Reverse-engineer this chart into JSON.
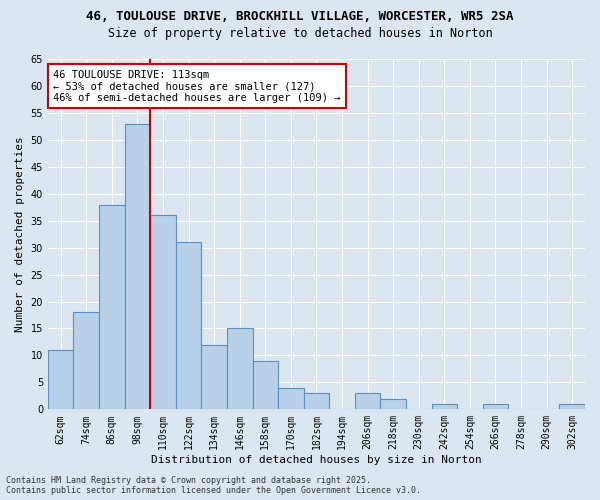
{
  "title1": "46, TOULOUSE DRIVE, BROCKHILL VILLAGE, WORCESTER, WR5 2SA",
  "title2": "Size of property relative to detached houses in Norton",
  "xlabel": "Distribution of detached houses by size in Norton",
  "ylabel": "Number of detached properties",
  "categories": [
    "62sqm",
    "74sqm",
    "86sqm",
    "98sqm",
    "110sqm",
    "122sqm",
    "134sqm",
    "146sqm",
    "158sqm",
    "170sqm",
    "182sqm",
    "194sqm",
    "206sqm",
    "218sqm",
    "230sqm",
    "242sqm",
    "254sqm",
    "266sqm",
    "278sqm",
    "290sqm",
    "302sqm"
  ],
  "values": [
    11,
    18,
    38,
    53,
    36,
    31,
    12,
    15,
    9,
    4,
    3,
    0,
    3,
    2,
    0,
    1,
    0,
    1,
    0,
    0,
    1
  ],
  "bar_color": "#b8d0e8",
  "bar_edge_color": "#5a8fc0",
  "bar_edge_width": 0.8,
  "ylim": [
    0,
    65
  ],
  "yticks": [
    0,
    5,
    10,
    15,
    20,
    25,
    30,
    35,
    40,
    45,
    50,
    55,
    60,
    65
  ],
  "vline_x": 3.5,
  "vline_color": "#cc0000",
  "annotation_text": "46 TOULOUSE DRIVE: 113sqm\n← 53% of detached houses are smaller (127)\n46% of semi-detached houses are larger (109) →",
  "annotation_box_color": "white",
  "annotation_box_edge_color": "#cc0000",
  "footer1": "Contains HM Land Registry data © Crown copyright and database right 2025.",
  "footer2": "Contains public sector information licensed under the Open Government Licence v3.0.",
  "background_color": "#dce6f0",
  "plot_bg_color": "#dce6f0",
  "grid_color": "white",
  "title1_fontsize": 9,
  "title2_fontsize": 8.5,
  "tick_fontsize": 7,
  "ylabel_fontsize": 8,
  "xlabel_fontsize": 8,
  "footer_fontsize": 6,
  "annotation_fontsize": 7.5
}
